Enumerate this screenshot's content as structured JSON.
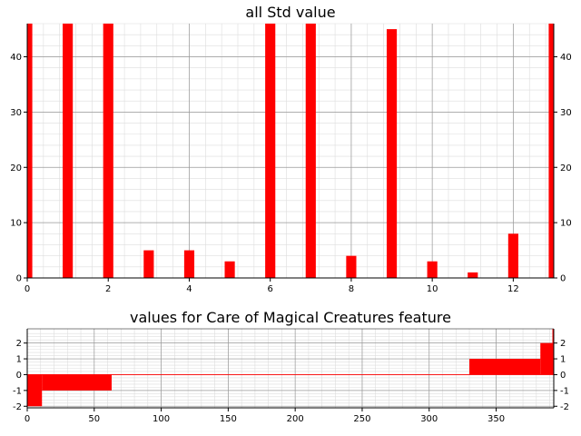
{
  "chart_data": [
    {
      "type": "bar",
      "title": "all Std value",
      "xlabel": "",
      "ylabel": "",
      "xlim": [
        0,
        13
      ],
      "ylim": [
        0,
        46
      ],
      "xticks": [
        0,
        2,
        4,
        6,
        8,
        10,
        12
      ],
      "yticks": [
        0,
        10,
        20,
        30,
        40
      ],
      "grid": true,
      "x": [
        0,
        1,
        2,
        3,
        4,
        5,
        6,
        7,
        8,
        9,
        10,
        11,
        12,
        13
      ],
      "values": [
        46,
        46,
        46,
        5,
        5,
        3,
        46,
        46,
        4,
        45,
        3,
        1,
        8,
        46
      ],
      "color": "#ff0000"
    },
    {
      "type": "area",
      "title": "values for Care of Magical Creatures feature",
      "xlabel": "",
      "ylabel": "",
      "xlim": [
        0,
        393
      ],
      "ylim": [
        -2.1,
        2.9
      ],
      "xticks": [
        0,
        50,
        100,
        150,
        200,
        250,
        300,
        350
      ],
      "yticks": [
        -2,
        -1,
        0,
        1,
        2
      ],
      "grid": true,
      "color": "#ff0000",
      "segments": [
        {
          "x_start": 0,
          "x_end": 11,
          "value": -2
        },
        {
          "x_start": 11,
          "x_end": 63,
          "value": -1
        },
        {
          "x_start": 63,
          "x_end": 330,
          "value": 0
        },
        {
          "x_start": 330,
          "x_end": 383,
          "value": 1
        },
        {
          "x_start": 383,
          "x_end": 392,
          "value": 2
        },
        {
          "x_start": 392,
          "x_end": 393,
          "value": 3
        }
      ]
    }
  ]
}
